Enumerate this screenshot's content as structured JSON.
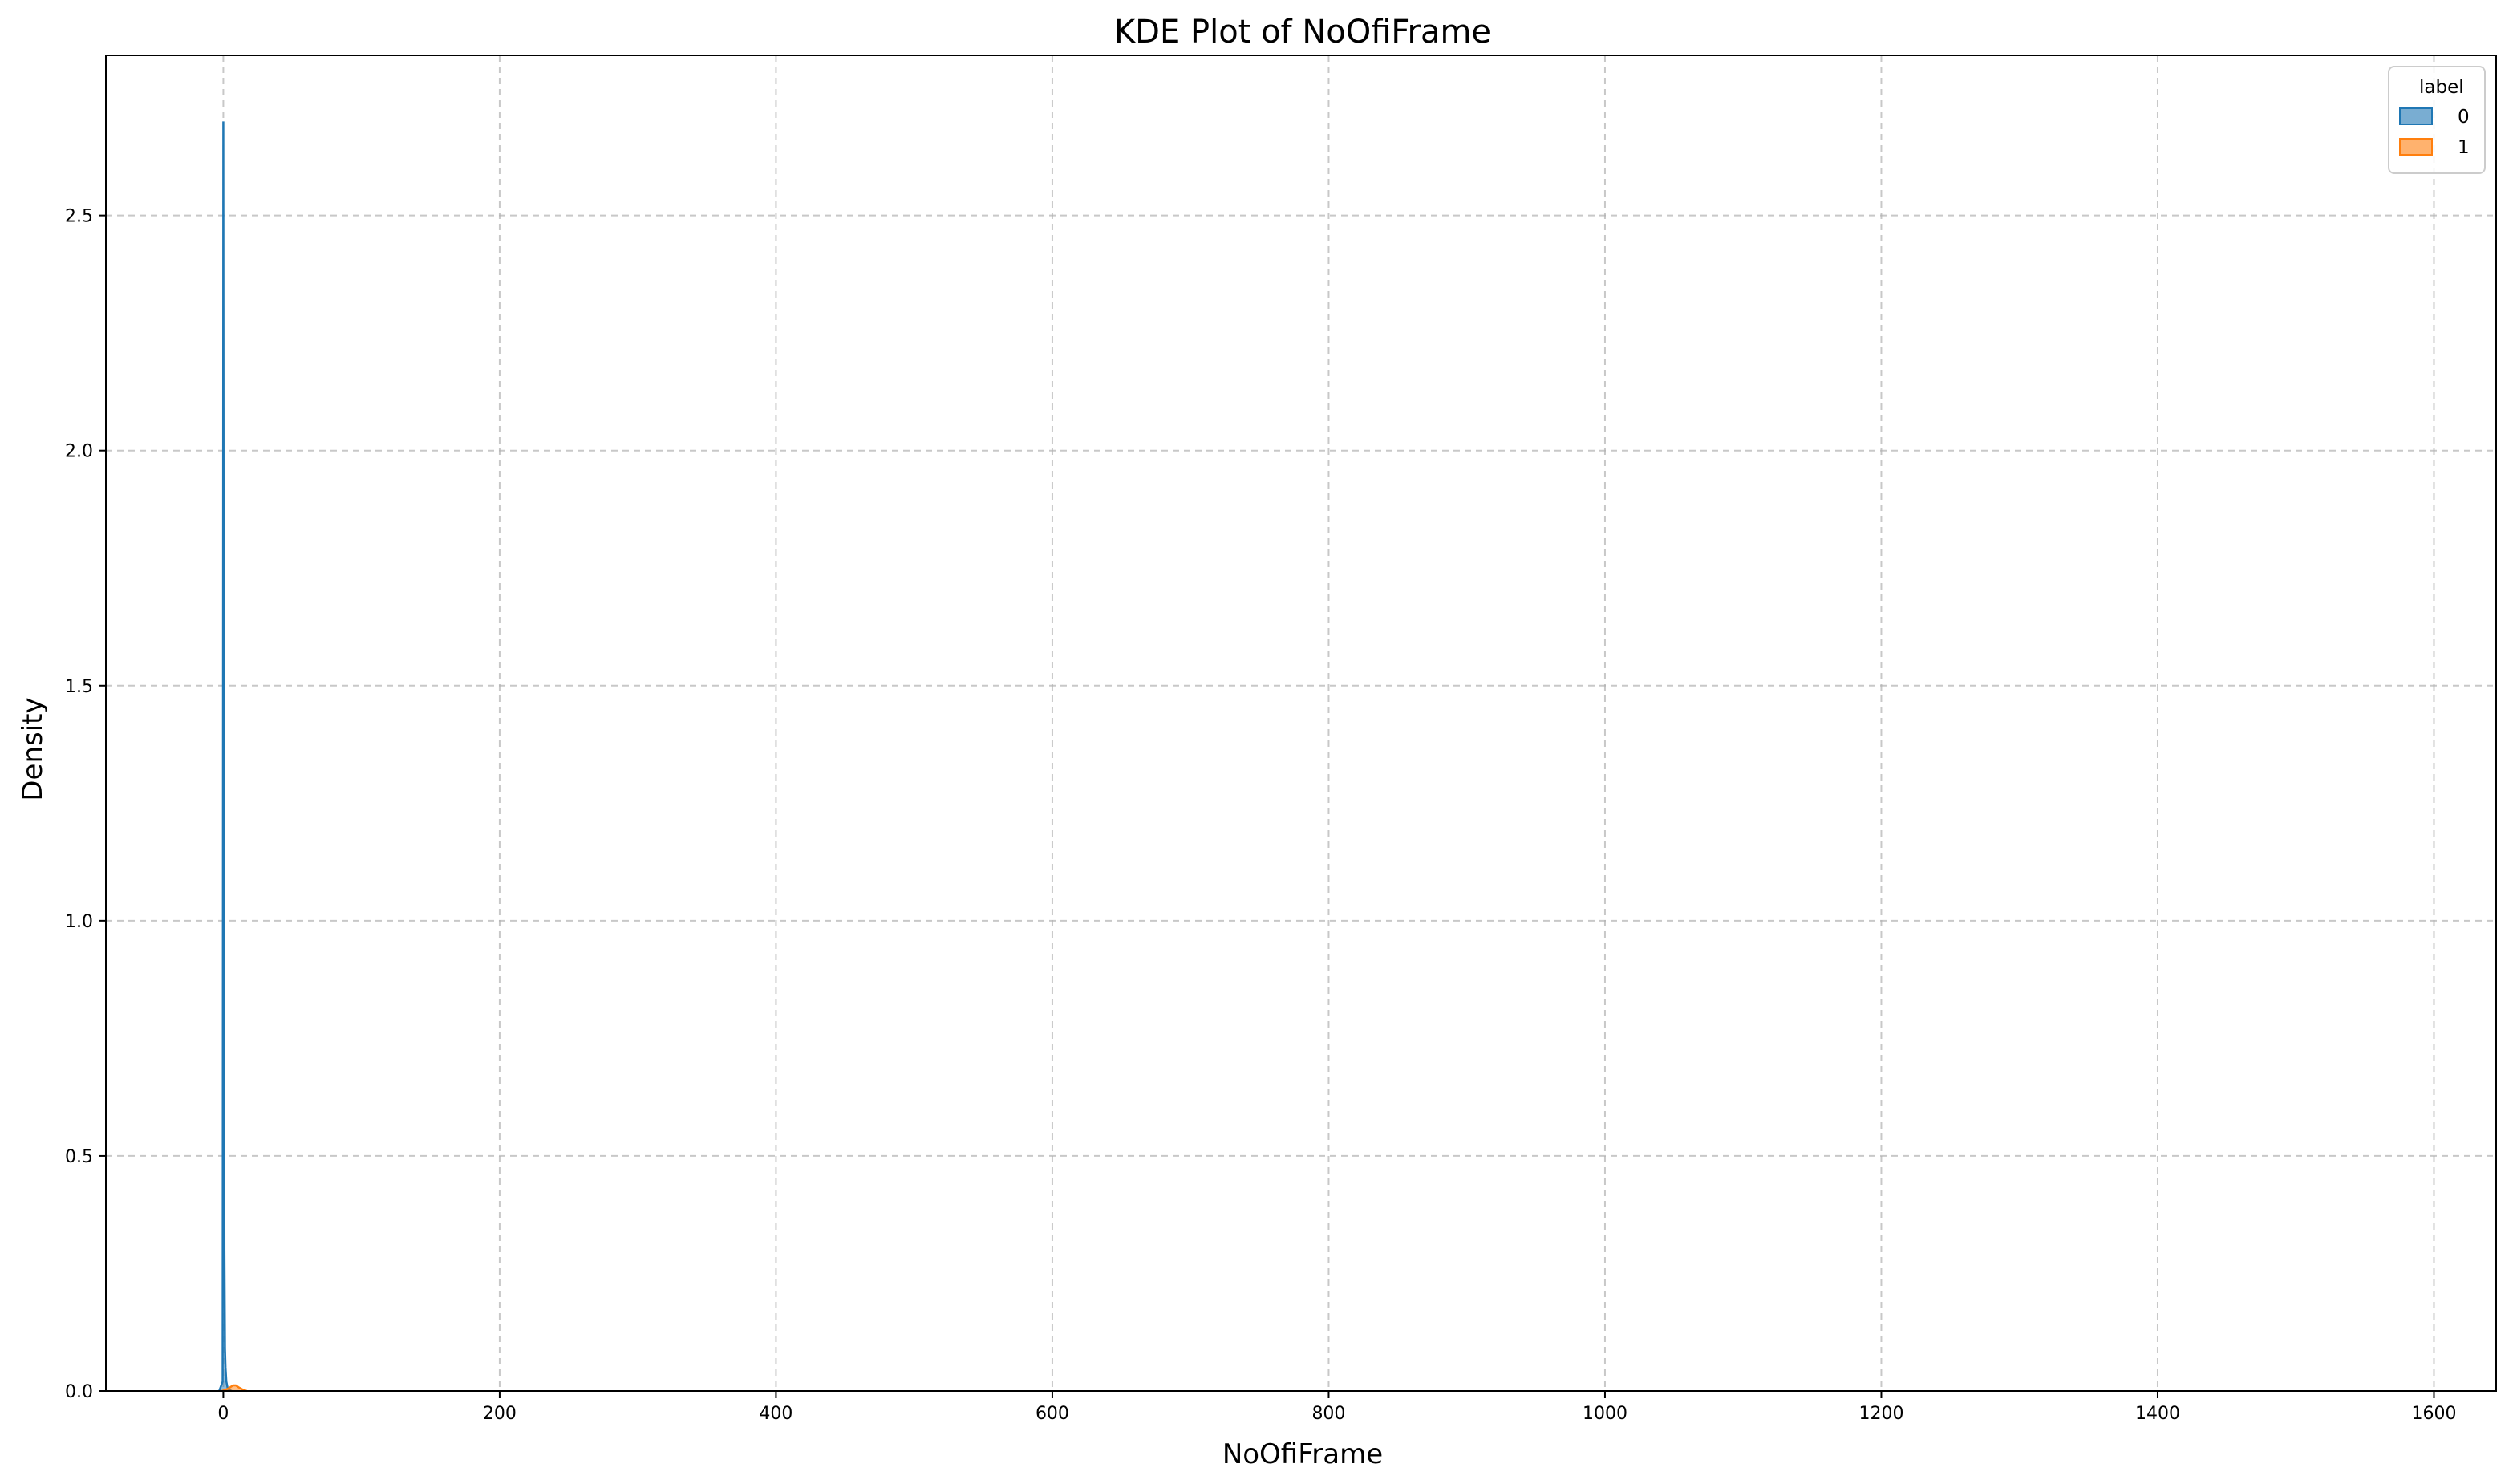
{
  "chart_data": {
    "type": "area",
    "title": "KDE Plot of NoOfiFrame",
    "xlabel": "NoOfiFrame",
    "ylabel": "Density",
    "xlim": [
      -85,
      1645
    ],
    "ylim": [
      0,
      2.8406
    ],
    "xticks": [
      0,
      200,
      400,
      600,
      800,
      1000,
      1200,
      1400,
      1600
    ],
    "xtick_labels": [
      "0",
      "200",
      "400",
      "600",
      "800",
      "1000",
      "1200",
      "1400",
      "1600"
    ],
    "yticks": [
      0,
      0.5,
      1.0,
      1.5,
      2.0,
      2.5
    ],
    "ytick_labels": [
      "0.0",
      "0.5",
      "1.0",
      "1.5",
      "2.0",
      "2.5"
    ],
    "grid": true,
    "legend": {
      "title": "label",
      "placement": "top-right"
    },
    "series": [
      {
        "name": "0",
        "color": "#1f77b4",
        "x": [
          -3,
          -0.5,
          0,
          0.3,
          0.8,
          1.2,
          1.6,
          2.2,
          3,
          4,
          6
        ],
        "y": [
          0,
          0.02,
          2.7,
          1.5,
          0.3,
          0.09,
          0.05,
          0.02,
          0.008,
          0.003,
          0
        ]
      },
      {
        "name": "1",
        "color": "#ff7f0e",
        "x": [
          -1,
          2,
          5,
          7,
          9,
          11,
          14,
          17
        ],
        "y": [
          0,
          0.003,
          0.008,
          0.012,
          0.012,
          0.008,
          0.003,
          0
        ]
      }
    ]
  }
}
